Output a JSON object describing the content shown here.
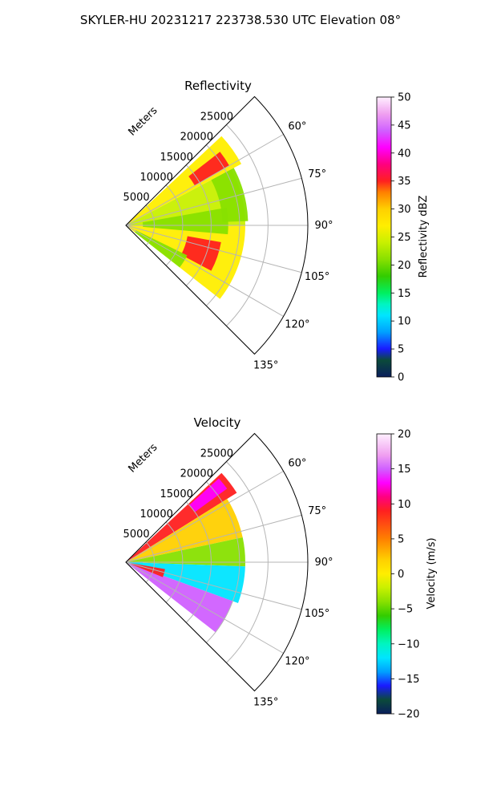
{
  "figure": {
    "title": "SKYLER-HU  20231217  223738.530 UTC Elevation 08°"
  },
  "chart_data": [
    {
      "type": "heatmap",
      "subtype": "polar_sector_ppi",
      "title": "Reflectivity",
      "radial_axis_label": "Meters",
      "radial_ticks": [
        5000,
        10000,
        15000,
        20000,
        25000
      ],
      "radial_tick_labels": [
        "5000",
        "10000",
        "15000",
        "20000",
        "25000"
      ],
      "radial_range": [
        0,
        32000
      ],
      "azimuth_range_deg": [
        45,
        135
      ],
      "azimuth_ticks": [
        60,
        75,
        90,
        105,
        120,
        135
      ],
      "azimuth_tick_labels": [
        "60°",
        "75°",
        "90°",
        "105°",
        "120°",
        "135°"
      ],
      "grid": true,
      "colorbar": {
        "label": "Reflectivity dBZ",
        "min": 0,
        "max": 50,
        "ticks": [
          0,
          5,
          10,
          15,
          20,
          25,
          30,
          35,
          40,
          45,
          50
        ],
        "tick_labels": [
          "0",
          "5",
          "10",
          "15",
          "20",
          "25",
          "30",
          "35",
          "40",
          "45",
          "50"
        ],
        "stops": [
          [
            0,
            "#0a1e5c"
          ],
          [
            3,
            "#0b4a3a"
          ],
          [
            5,
            "#1a1aff"
          ],
          [
            8,
            "#00a0ff"
          ],
          [
            11,
            "#00e5ff"
          ],
          [
            13,
            "#00f5c0"
          ],
          [
            15,
            "#00f060"
          ],
          [
            18,
            "#33cc00"
          ],
          [
            21,
            "#88e000"
          ],
          [
            24,
            "#c8f000"
          ],
          [
            27,
            "#ffee00"
          ],
          [
            30,
            "#ffd000"
          ],
          [
            33,
            "#ff8000"
          ],
          [
            35,
            "#ff2020"
          ],
          [
            38,
            "#ff0080"
          ],
          [
            41,
            "#ff00ff"
          ],
          [
            44,
            "#d060ff"
          ],
          [
            47,
            "#f0a0f0"
          ],
          [
            50,
            "#fff0ff"
          ]
        ]
      },
      "echo_regions": [
        {
          "az_start": 47,
          "az_end": 62,
          "r_start": 0,
          "r_end": 23000,
          "value": 28
        },
        {
          "az_start": 62,
          "az_end": 90,
          "r_start": 0,
          "r_end": 21000,
          "value": 25
        },
        {
          "az_start": 90,
          "az_end": 128,
          "r_start": 0,
          "r_end": 21000,
          "value": 27
        },
        {
          "az_start": 52,
          "az_end": 60,
          "r_start": 14000,
          "r_end": 21000,
          "value": 36
        },
        {
          "az_start": 100,
          "az_end": 118,
          "r_start": 11000,
          "r_end": 17000,
          "value": 36
        },
        {
          "az_start": 80,
          "az_end": 95,
          "r_start": 3000,
          "r_end": 18000,
          "value": 22
        },
        {
          "az_start": 116,
          "az_end": 128,
          "r_start": 2000,
          "r_end": 12000,
          "value": 21
        },
        {
          "az_start": 62,
          "az_end": 88,
          "r_start": 17000,
          "r_end": 21500,
          "value": 21
        }
      ]
    },
    {
      "type": "heatmap",
      "subtype": "polar_sector_ppi",
      "title": "Velocity",
      "radial_axis_label": "Meters",
      "radial_ticks": [
        5000,
        10000,
        15000,
        20000,
        25000
      ],
      "radial_tick_labels": [
        "5000",
        "10000",
        "15000",
        "20000",
        "25000"
      ],
      "radial_range": [
        0,
        32000
      ],
      "azimuth_range_deg": [
        45,
        135
      ],
      "azimuth_ticks": [
        60,
        75,
        90,
        105,
        120,
        135
      ],
      "azimuth_tick_labels": [
        "60°",
        "75°",
        "90°",
        "105°",
        "120°",
        "135°"
      ],
      "grid": true,
      "colorbar": {
        "label": "Velocity (m/s)",
        "min": -20,
        "max": 20,
        "ticks": [
          -20,
          -15,
          -10,
          -5,
          0,
          5,
          10,
          15,
          20
        ],
        "tick_labels": [
          "−20",
          "−15",
          "−10",
          "−5",
          "0",
          "5",
          "10",
          "15",
          "20"
        ],
        "stops": [
          [
            -20,
            "#0a1e5c"
          ],
          [
            -18,
            "#0b4a3a"
          ],
          [
            -16,
            "#1a1aff"
          ],
          [
            -14,
            "#00a0ff"
          ],
          [
            -12,
            "#00e5ff"
          ],
          [
            -10,
            "#00f5c0"
          ],
          [
            -8,
            "#00f060"
          ],
          [
            -6,
            "#33cc00"
          ],
          [
            -4,
            "#88e000"
          ],
          [
            -2,
            "#c8f000"
          ],
          [
            0,
            "#ffee00"
          ],
          [
            2,
            "#ffd000"
          ],
          [
            5,
            "#ff8000"
          ],
          [
            9,
            "#ff2020"
          ],
          [
            11,
            "#ff0080"
          ],
          [
            13,
            "#ff00ff"
          ],
          [
            15,
            "#d060ff"
          ],
          [
            17,
            "#f0a0f0"
          ],
          [
            20,
            "#fff0ff"
          ]
        ]
      },
      "echo_regions": [
        {
          "az_start": 47,
          "az_end": 58,
          "r_start": 0,
          "r_end": 23000,
          "value": 9
        },
        {
          "az_start": 48,
          "az_end": 54,
          "r_start": 15000,
          "r_end": 22000,
          "value": 13
        },
        {
          "az_start": 58,
          "az_end": 78,
          "r_start": 0,
          "r_end": 21000,
          "value": 4
        },
        {
          "az_start": 78,
          "az_end": 92,
          "r_start": 0,
          "r_end": 21000,
          "value": -3
        },
        {
          "az_start": 92,
          "az_end": 110,
          "r_start": 0,
          "r_end": 21000,
          "value": -11
        },
        {
          "az_start": 110,
          "az_end": 128,
          "r_start": 0,
          "r_end": 20000,
          "value": 15
        },
        {
          "az_start": 100,
          "az_end": 112,
          "r_start": 1000,
          "r_end": 7000,
          "value": 9
        },
        {
          "az_start": 88,
          "az_end": 96,
          "r_start": 0,
          "r_end": 3000,
          "value": -12
        }
      ]
    }
  ]
}
